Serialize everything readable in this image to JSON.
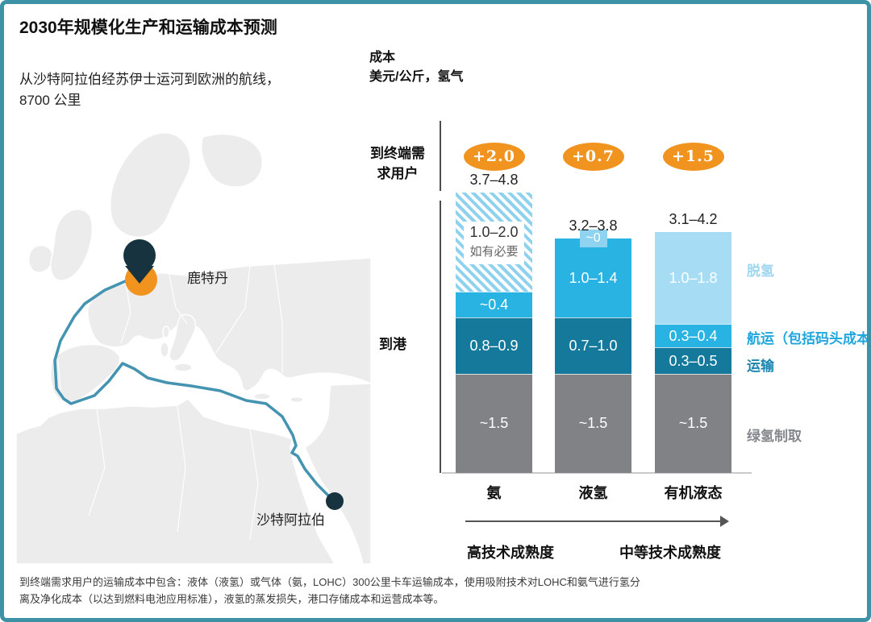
{
  "header": {
    "title": "2030年规模化生产和运输成本预测",
    "subtitle_line1": "从沙特阿拉伯经苏伊士运河到欧洲的航线，",
    "subtitle_line2": "8700 公里"
  },
  "axis": {
    "cost_line1": "成本",
    "cost_line2": "美元/公斤，氢气",
    "row_end_user_line1": "到终端需",
    "row_end_user_line2": "求用户",
    "row_port": "到港"
  },
  "map": {
    "rotterdam_label": "鹿特丹",
    "saudi_label": "沙特阿拉伯"
  },
  "maturity": {
    "high": "高技术成熟度",
    "medium": "中等技术成熟度"
  },
  "footnote": {
    "line1": "到终端需求用户的运输成本中包含：液体（液氢）或气体（氨，LOHC）300公里卡车运输成本，使用吸附技术对LOHC和氨气进行氢分",
    "line2": "离及净化成本（以达到燃料电池应用标准），液氢的蒸发损失，港口存储成本和运营成本等。"
  },
  "colors": {
    "border_teal": "#3e92a5",
    "orange": "#f0931f",
    "cyan_shipping": "#29b3e3",
    "teal_transport": "#15799c",
    "light_blue_dehydro": "#a6dcf4",
    "tag_blue": "#8ed3f0",
    "gray_production": "#808285",
    "route": "#4493b0",
    "pin_navy": "#16333f",
    "map_land": "#ececec"
  },
  "chart_data": {
    "type": "bar",
    "stacked": true,
    "title": "2030年规模化生产和运输成本预测",
    "unit": "美元/公斤，氢气",
    "categories": [
      "氨",
      "液氢",
      "有机液态"
    ],
    "totals_to_port": [
      "3.7–4.8",
      "3.2–3.8",
      "3.1–4.2"
    ],
    "to_end_user_delta": [
      "+2.0",
      "+0.7",
      "+1.5"
    ],
    "legend": [
      {
        "label": "脱氢",
        "color": "#9fd6f0"
      },
      {
        "label": "航运（包括码头成本）",
        "color": "#1fa6de"
      },
      {
        "label": "运输",
        "color": "#1a85ae"
      },
      {
        "label": "绿氢制取",
        "color": "#85888b"
      }
    ],
    "bars": [
      {
        "category": "氨",
        "delta": "+2.0",
        "total": "3.7–4.8",
        "segments": [
          {
            "series": "脱氢",
            "label": "1.0–2.0",
            "sublabel": "如有必要",
            "range": [
              1.0,
              2.0
            ],
            "mid": 1.5,
            "style": "hatch"
          },
          {
            "series": "航运（包括码头成本）",
            "label": "~0.4",
            "range": [
              0.4,
              0.4
            ],
            "mid": 0.4,
            "style": "cyan"
          },
          {
            "series": "运输",
            "label": "0.8–0.9",
            "range": [
              0.8,
              0.9
            ],
            "mid": 0.85,
            "style": "teal"
          },
          {
            "series": "绿氢制取",
            "label": "~1.5",
            "range": [
              1.5,
              1.5
            ],
            "mid": 1.5,
            "style": "gray"
          }
        ]
      },
      {
        "category": "液氢",
        "delta": "+0.7",
        "total": "3.2–3.8",
        "top_tag": {
          "series": "脱氢",
          "label": "~0"
        },
        "segments": [
          {
            "series": "航运（包括码头成本）",
            "label": "1.0–1.4",
            "range": [
              1.0,
              1.4
            ],
            "mid": 1.2,
            "style": "cyan"
          },
          {
            "series": "运输",
            "label": "0.7–1.0",
            "range": [
              0.7,
              1.0
            ],
            "mid": 0.85,
            "style": "teal"
          },
          {
            "series": "绿氢制取",
            "label": "~1.5",
            "range": [
              1.5,
              1.5
            ],
            "mid": 1.5,
            "style": "gray"
          }
        ]
      },
      {
        "category": "有机液态",
        "delta": "+1.5",
        "total": "3.1–4.2",
        "segments": [
          {
            "series": "脱氢",
            "label": "1.0–1.8",
            "range": [
              1.0,
              1.8
            ],
            "mid": 1.4,
            "style": "light"
          },
          {
            "series": "航运（包括码头成本）",
            "label": "0.3–0.4",
            "range": [
              0.3,
              0.4
            ],
            "mid": 0.35,
            "style": "cyan"
          },
          {
            "series": "运输",
            "label": "0.3–0.5",
            "range": [
              0.3,
              0.5
            ],
            "mid": 0.4,
            "style": "teal"
          },
          {
            "series": "绿氢制取",
            "label": "~1.5",
            "range": [
              1.5,
              1.5
            ],
            "mid": 1.5,
            "style": "gray"
          }
        ]
      }
    ]
  }
}
